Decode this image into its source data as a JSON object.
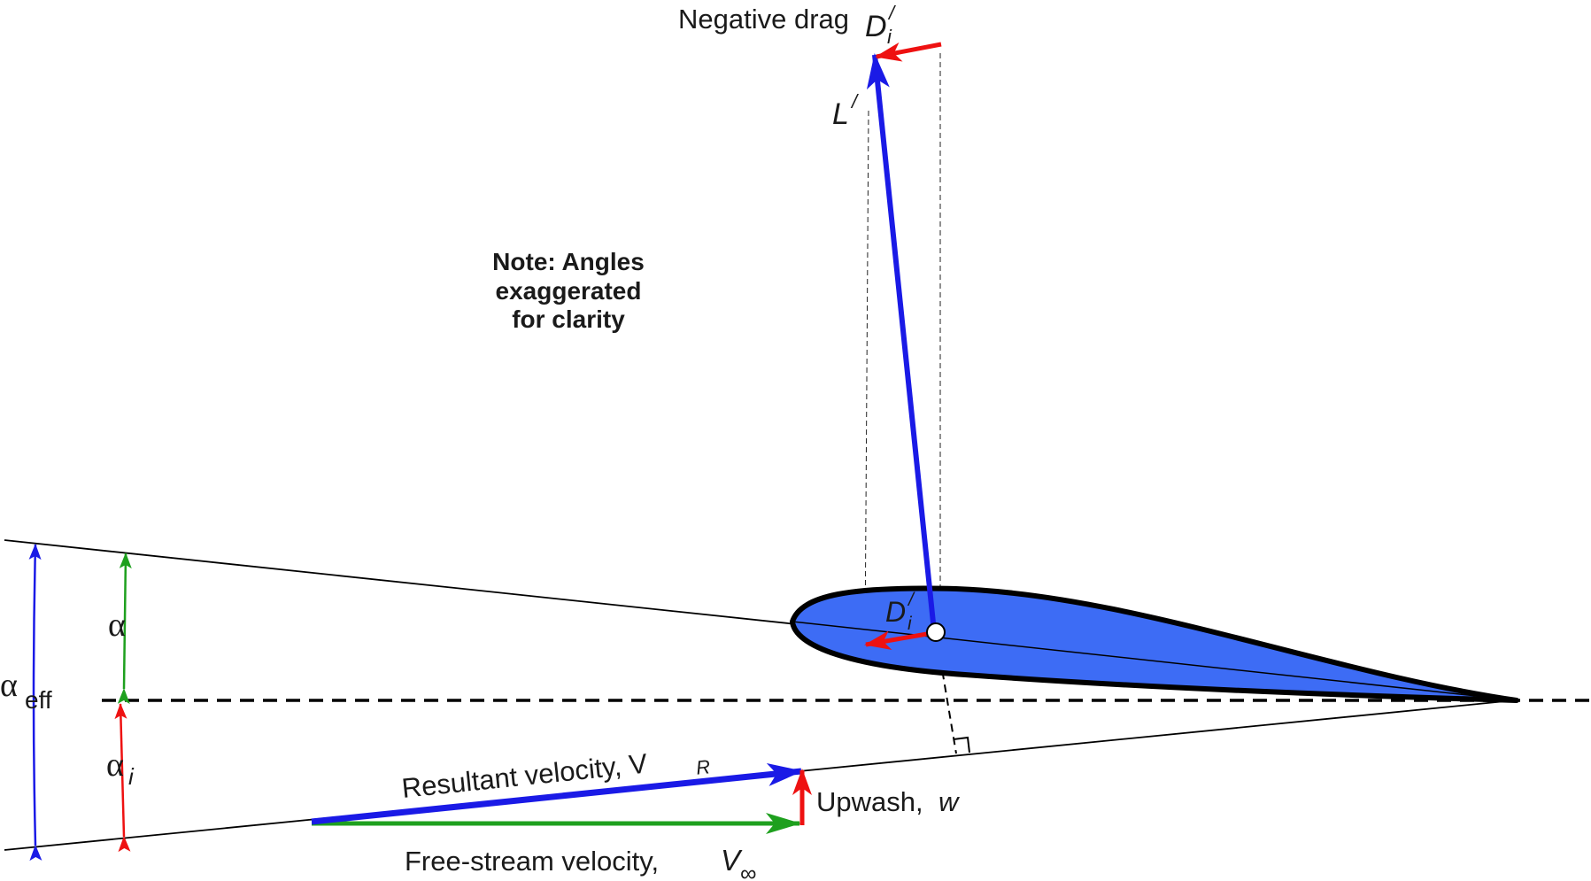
{
  "labels": {
    "negative_drag": "Negative drag",
    "lift": "L",
    "lift_prime": "/",
    "drag_main": "D",
    "drag_sub": "i",
    "drag_prime": "/",
    "note_line1": "Note: Angles",
    "note_line2": "exaggerated",
    "note_line3": "for clarity",
    "alpha": "α",
    "alpha_eff_symbol": "α",
    "alpha_eff_sub": "eff",
    "alpha_i_symbol": "α",
    "alpha_i_sub": "i",
    "resultant_velocity": "Resultant velocity, V",
    "resultant_velocity_sub": "R",
    "upwash": "Upwash, ",
    "upwash_symbol": "w",
    "freestream_velocity": "Free-stream velocity, ",
    "freestream_symbol": "V",
    "freestream_sub": "∞"
  },
  "colors": {
    "airfoil_fill": "#3d6cf5",
    "lift_vector": "#1a1ae6",
    "drag_vector": "#ee1111",
    "freestream_vector": "#1ea01e",
    "alpha_eff_arrow": "#1a1ae6",
    "alpha_arrow": "#1ea01e",
    "alpha_i_arrow": "#ee1111",
    "lines": "#000000"
  }
}
